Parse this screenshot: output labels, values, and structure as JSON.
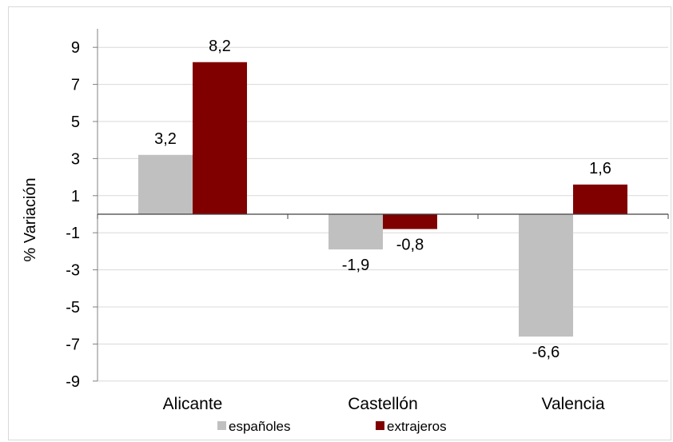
{
  "chart_data": {
    "type": "bar",
    "ylabel": "% Variación",
    "categories": [
      "Alicante",
      "Castellón",
      "Valencia"
    ],
    "series": [
      {
        "name": "españoles",
        "color": "#c0c0c0",
        "values": [
          3.2,
          -1.9,
          -6.6
        ],
        "labels": [
          "3,2",
          "-1,9",
          "-6,6"
        ]
      },
      {
        "name": "extrajeros",
        "color": "#800000",
        "values": [
          8.2,
          -0.8,
          1.6
        ],
        "labels": [
          "8,2",
          "-0,8",
          "1,6"
        ]
      }
    ],
    "ylim": [
      -9,
      10
    ],
    "yticks": [
      9,
      7,
      5,
      3,
      1,
      -1,
      -3,
      -5,
      -7,
      -9
    ],
    "grid": true,
    "legend": "bottom"
  }
}
